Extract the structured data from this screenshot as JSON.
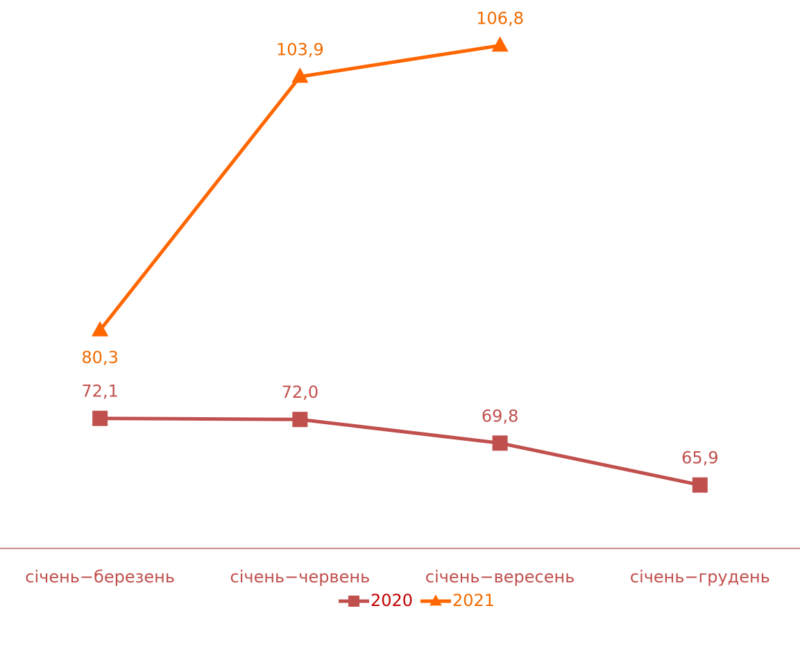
{
  "chart_data": {
    "type": "line",
    "categories": [
      "січень−березень",
      "січень−червень",
      "січень−вересень",
      "січень−грудень"
    ],
    "series": [
      {
        "name": "2020",
        "color": "#c0504d",
        "marker": "square",
        "values": [
          72.1,
          72.0,
          69.8,
          65.9
        ],
        "value_labels": [
          "72,1",
          "72,0",
          "69,8",
          "65,9"
        ]
      },
      {
        "name": "2021",
        "color": "#ff6600",
        "marker": "triangle",
        "values": [
          80.3,
          103.9,
          106.8,
          null
        ],
        "value_labels": [
          "80,3",
          "103,9",
          "106,8",
          null
        ]
      }
    ],
    "ylim": [
      60,
      110
    ],
    "legend": "bottom"
  }
}
